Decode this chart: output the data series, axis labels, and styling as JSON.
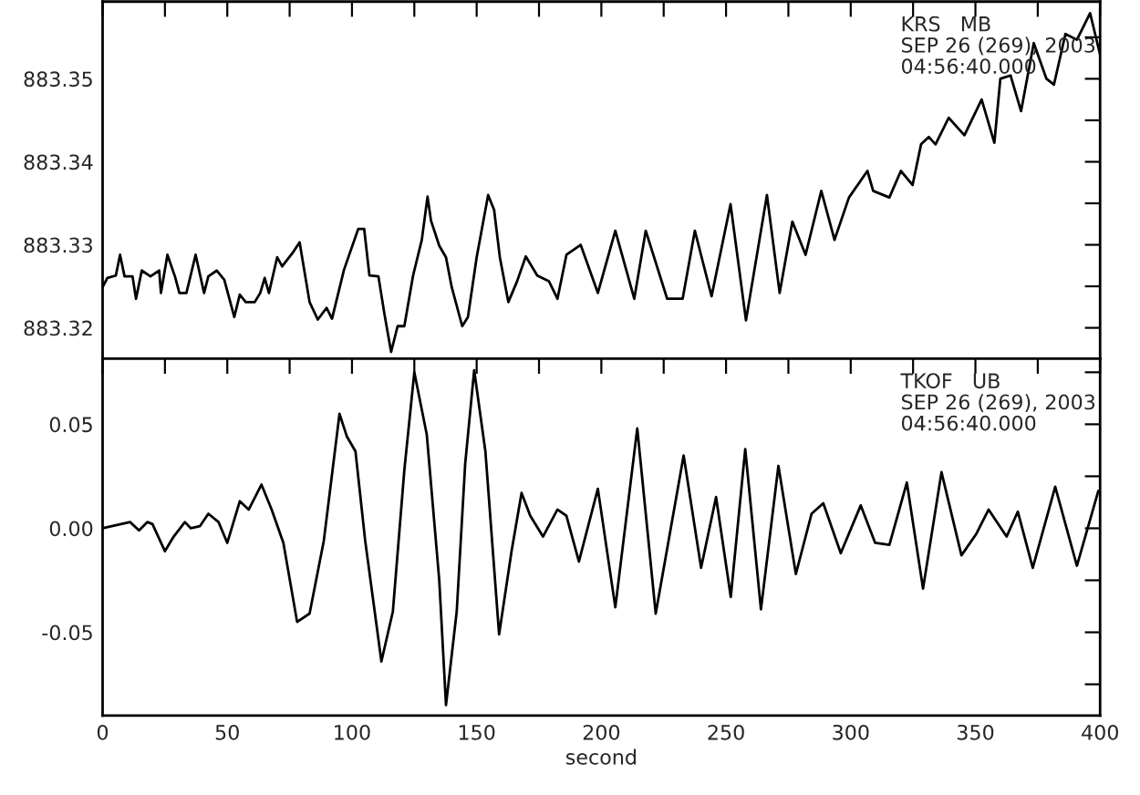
{
  "chart_data": [
    {
      "type": "line",
      "annotations": [
        "KRS   MB\nSEP 26 (269), 2003\n04:56:40.000"
      ],
      "tick_labels": "y",
      "grid": false,
      "xlim": [
        0,
        400
      ],
      "xticks": [
        {
          "value": 0,
          "label": null
        },
        {
          "value": 25,
          "label": null
        },
        {
          "value": 50,
          "label": null
        },
        {
          "value": 75,
          "label": null
        },
        {
          "value": 100,
          "label": null
        },
        {
          "value": 125,
          "label": null
        },
        {
          "value": 150,
          "label": null
        },
        {
          "value": 175,
          "label": null
        },
        {
          "value": 200,
          "label": null
        },
        {
          "value": 225,
          "label": null
        },
        {
          "value": 250,
          "label": null
        },
        {
          "value": 275,
          "label": null
        },
        {
          "value": 300,
          "label": null
        },
        {
          "value": 325,
          "label": null
        },
        {
          "value": 350,
          "label": null
        },
        {
          "value": 375,
          "label": null
        },
        {
          "value": 400,
          "label": null
        }
      ],
      "ylim": [
        883.3163,
        883.3593
      ],
      "yticks": [
        883.32,
        {
          "value": 883.325,
          "label": null
        },
        883.33,
        {
          "value": 883.335,
          "label": null
        },
        883.34,
        {
          "value": 883.345,
          "label": null
        },
        883.35,
        {
          "value": 883.355,
          "label": null
        }
      ],
      "series": [
        {
          "color": "#000000",
          "x": [
            0,
            1.9,
            5.3,
            7,
            8.8,
            12,
            13.4,
            15.7,
            19.2,
            22.7,
            23.4,
            26,
            29,
            30.8,
            33.6,
            37.3,
            40.7,
            42.4,
            45.8,
            48.8,
            52.8,
            55,
            57.4,
            61,
            63.2,
            65,
            66.7,
            70,
            72,
            76.6,
            79,
            83,
            86.3,
            89.8,
            92,
            96.8,
            102.5,
            104.9,
            107,
            110.6,
            113,
            115.7,
            118.3,
            121,
            124.5,
            128,
            130.3,
            131.7,
            135,
            137.7,
            140,
            144.2,
            146.5,
            150,
            154.6,
            157,
            159.3,
            162.7,
            166.2,
            169.7,
            174.3,
            179,
            182.4,
            186,
            191.7,
            198.6,
            205.6,
            213.2,
            217.8,
            226.4,
            232.6,
            237.5,
            244.2,
            251.8,
            258,
            266.4,
            271.5,
            276.6,
            281.9,
            288.2,
            293.5,
            299.3,
            306.7,
            309,
            315.5,
            320.1,
            324.8,
            328.2,
            331.3,
            334,
            339.3,
            345.6,
            352.5,
            357.6,
            360,
            364.1,
            368.3,
            373.4,
            378.5,
            381.5,
            386.1,
            390.7,
            396,
            400
          ],
          "values": [
            883.3249,
            883.326,
            883.3263,
            883.3288,
            883.3262,
            883.3262,
            883.3235,
            883.3269,
            883.3262,
            883.3269,
            883.3242,
            883.3288,
            883.3262,
            883.3242,
            883.3242,
            883.3288,
            883.3242,
            883.3262,
            883.3269,
            883.3258,
            883.3213,
            883.324,
            883.3231,
            883.3231,
            883.3242,
            883.326,
            883.3242,
            883.3285,
            883.3274,
            883.3292,
            883.3303,
            883.3231,
            883.321,
            883.3224,
            883.3211,
            883.327,
            883.3319,
            883.3319,
            883.3263,
            883.3262,
            883.3217,
            883.3171,
            883.3202,
            883.3202,
            883.3263,
            883.3306,
            883.3358,
            883.3329,
            883.3299,
            883.3285,
            883.3249,
            883.3202,
            883.3213,
            883.3285,
            883.336,
            883.3342,
            883.3285,
            883.3231,
            883.3256,
            883.3286,
            883.3263,
            883.3256,
            883.3235,
            883.3288,
            883.33,
            883.3242,
            883.3317,
            883.3235,
            883.3317,
            883.3235,
            883.3235,
            883.3317,
            883.3238,
            883.3349,
            883.3209,
            883.336,
            883.3242,
            883.3328,
            883.3288,
            883.3365,
            883.3306,
            883.3357,
            883.3389,
            883.3365,
            883.3357,
            883.3389,
            883.3372,
            883.3421,
            883.343,
            883.3421,
            883.3453,
            883.3432,
            883.3475,
            883.3423,
            883.35,
            883.3504,
            883.3461,
            883.3543,
            883.35,
            883.3493,
            883.3554,
            883.3547,
            883.3579,
            883.3529
          ]
        }
      ]
    },
    {
      "type": "line",
      "annotations": [
        "TKOF   UB\nSEP 26 (269), 2003\n04:56:40.000"
      ],
      "xlabel": "second",
      "grid": false,
      "xlim": [
        0,
        400
      ],
      "xticks": [
        0,
        {
          "value": 25,
          "label": null
        },
        50,
        {
          "value": 75,
          "label": null
        },
        100,
        {
          "value": 125,
          "label": null
        },
        150,
        {
          "value": 175,
          "label": null
        },
        200,
        {
          "value": 225,
          "label": null
        },
        250,
        {
          "value": 275,
          "label": null
        },
        300,
        {
          "value": 325,
          "label": null
        },
        350,
        {
          "value": 375,
          "label": null
        },
        400
      ],
      "ylim": [
        -0.09,
        0.0816
      ],
      "yticks": [
        {
          "value": -0.075,
          "label": null
        },
        {
          "value": -0.05,
          "label": "-0.05"
        },
        {
          "value": -0.025,
          "label": null
        },
        {
          "value": 0,
          "label": "0.00"
        },
        {
          "value": 0.025,
          "label": null
        },
        0.05,
        {
          "value": 0.075,
          "label": null
        }
      ],
      "series": [
        {
          "color": "#000000",
          "x": [
            0,
            11,
            14.6,
            18,
            20,
            25,
            28.5,
            33,
            35.4,
            39,
            42.4,
            46.5,
            50,
            55,
            58.6,
            63.7,
            67.8,
            72.5,
            78,
            83,
            88.7,
            95,
            98,
            101.4,
            105.3,
            111.8,
            116.4,
            121,
            125,
            130,
            135,
            137.7,
            142,
            145.4,
            149,
            153.5,
            159,
            164,
            168,
            171.5,
            176.6,
            182.4,
            186,
            191,
            198.6,
            205.6,
            214.4,
            221.8,
            233,
            240,
            246,
            251.9,
            257.7,
            264,
            271,
            278,
            284.3,
            289,
            296,
            304,
            309.8,
            315.5,
            322.5,
            329,
            336.4,
            344.4,
            350.2,
            355.3,
            362.5,
            367,
            373,
            382,
            390.7,
            399.3,
            400
          ],
          "values": [
            0,
            0.003,
            -0.001,
            0.003,
            0.002,
            -0.011,
            -0.004,
            0.003,
            0,
            0.001,
            0.007,
            0.003,
            -0.007,
            0.013,
            0.009,
            0.021,
            0.009,
            -0.007,
            -0.045,
            -0.041,
            -0.006,
            0.055,
            0.044,
            0.037,
            -0.006,
            -0.064,
            -0.04,
            0.028,
            0.075,
            0.045,
            -0.025,
            -0.085,
            -0.04,
            0.031,
            0.076,
            0.037,
            -0.051,
            -0.011,
            0.017,
            0.006,
            -0.004,
            0.009,
            0.006,
            -0.016,
            0.019,
            -0.038,
            0.048,
            -0.041,
            0.035,
            -0.019,
            0.015,
            -0.033,
            0.038,
            -0.039,
            0.03,
            -0.022,
            0.007,
            0.012,
            -0.012,
            0.011,
            -0.007,
            -0.008,
            0.022,
            -0.029,
            0.027,
            -0.013,
            -0.003,
            0.009,
            -0.004,
            0.008,
            -0.019,
            0.02,
            -0.018,
            0.018,
            0.017
          ]
        }
      ]
    }
  ]
}
